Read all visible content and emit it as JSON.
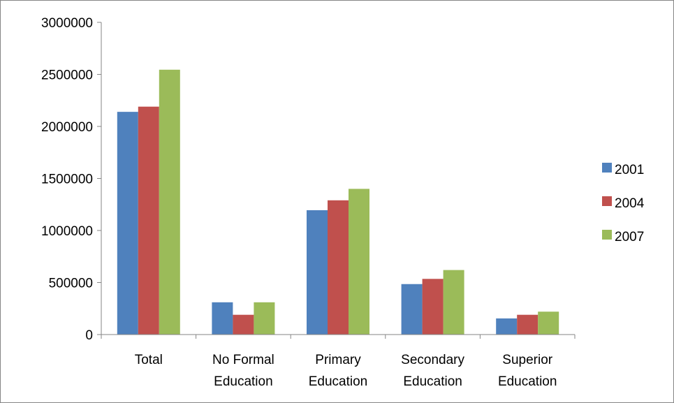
{
  "chart_data": {
    "type": "bar",
    "title": "",
    "xlabel": "",
    "ylabel": "",
    "categories": [
      [
        "Total"
      ],
      [
        "No Formal",
        "Education"
      ],
      [
        "Primary",
        "Education"
      ],
      [
        "Secondary",
        "Education"
      ],
      [
        "Superior",
        "Education"
      ]
    ],
    "series": [
      {
        "name": "2001",
        "color": "#4F81BD",
        "values": [
          2140000,
          310000,
          1195000,
          485000,
          155000
        ]
      },
      {
        "name": "2004",
        "color": "#C0504D",
        "values": [
          2190000,
          190000,
          1290000,
          535000,
          190000
        ]
      },
      {
        "name": "2007",
        "color": "#9BBB59",
        "values": [
          2545000,
          310000,
          1400000,
          620000,
          220000
        ]
      }
    ],
    "ylim": [
      0,
      3000000
    ],
    "yticks": [
      "0",
      "500000",
      "1000000",
      "1500000",
      "2000000",
      "2500000",
      "3000000"
    ],
    "grid": false,
    "legend_position": "right"
  }
}
